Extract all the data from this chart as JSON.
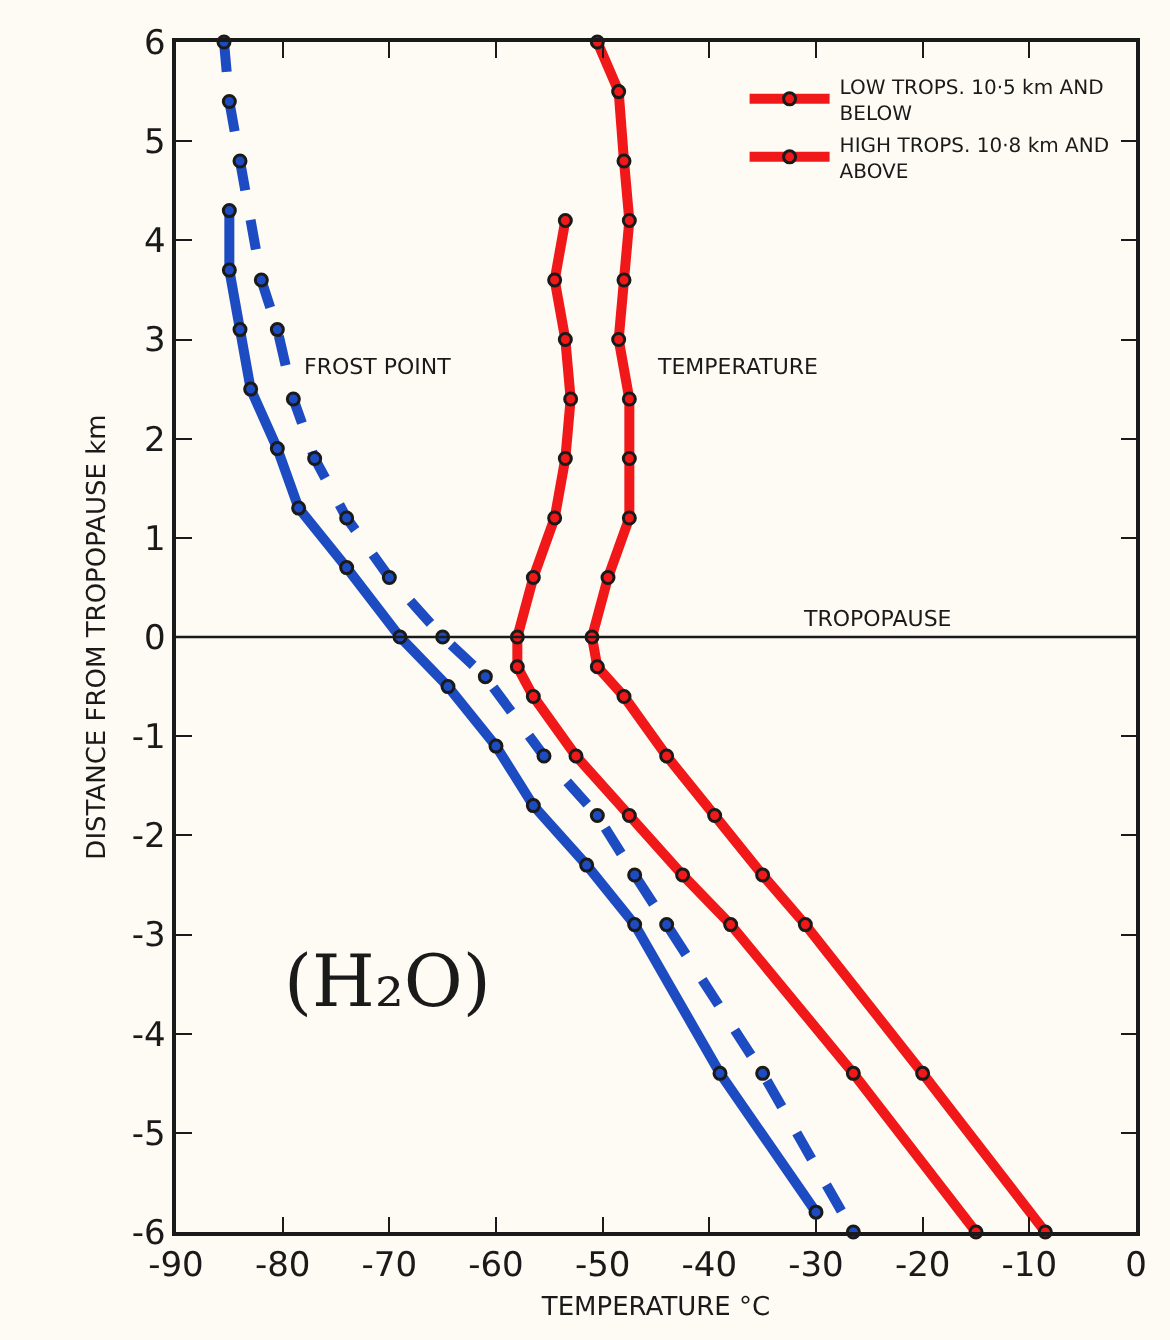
{
  "chart_data": {
    "type": "line",
    "xlabel": "TEMPERATURE °C",
    "ylabel": "DISTANCE FROM TROPOPAUSE km",
    "xlim": [
      -90,
      0
    ],
    "xticks": [
      -90,
      -80,
      -70,
      -60,
      -50,
      -40,
      -30,
      -20,
      -10,
      0
    ],
    "ylim": [
      -6,
      6
    ],
    "yticks": [
      -6,
      -5,
      -4,
      -3,
      -2,
      -1,
      0,
      1,
      2,
      3,
      4,
      5,
      6
    ],
    "marker": "circle",
    "legend": "top right",
    "ref_lines": [
      {
        "axis": "y",
        "value": 0,
        "label": "TROPOPAUSE"
      }
    ],
    "annotations": [
      "FROST POINT",
      "TEMPERATURE",
      "(H₂O)"
    ],
    "series": [
      {
        "name": "LOW TROPS. 10·5 km AND BELOW",
        "color": "#f01818",
        "line_style": "solid",
        "x": [
          -50.5,
          -48.5,
          -48.0,
          -47.5,
          -48.0,
          -48.5,
          -47.5,
          -47.5,
          -47.5,
          -49.5,
          -51.0,
          -50.5,
          -48.0,
          -44.0,
          -39.5,
          -35.0,
          -31.0,
          -20.0,
          -8.5
        ],
        "values": [
          6.0,
          5.5,
          4.8,
          4.2,
          3.6,
          3.0,
          2.4,
          1.8,
          1.2,
          0.6,
          0.0,
          -0.3,
          -0.6,
          -1.2,
          -1.8,
          -2.4,
          -2.9,
          -4.4,
          -6.0
        ]
      },
      {
        "color": "#1d4cc2",
        "line_style": "dashed",
        "x": [
          -85.5,
          -85.0,
          -84.0,
          -82.0,
          -80.5,
          -79.0,
          -77.0,
          -74.0,
          -70.0,
          -65.0,
          -61.0,
          -55.5,
          -50.5,
          -47.0,
          -44.0,
          -35.0,
          -26.5
        ],
        "values": [
          6.0,
          5.4,
          4.8,
          3.6,
          3.1,
          2.4,
          1.8,
          1.2,
          0.6,
          0.0,
          -0.4,
          -1.2,
          -1.8,
          -2.4,
          -2.9,
          -4.4,
          -6.0
        ]
      },
      {
        "name": "HIGH TROPS. 10·8 km AND ABOVE",
        "color": "#f01818",
        "line_style": "solid",
        "x": [
          -53.5,
          -54.5,
          -53.5,
          -53.0,
          -53.5,
          -54.5,
          -56.5,
          -58.0,
          -58.0,
          -56.5,
          -52.5,
          -47.5,
          -42.5,
          -38.0,
          -26.5,
          -15.0
        ],
        "values": [
          4.2,
          3.6,
          3.0,
          2.4,
          1.8,
          1.2,
          0.6,
          0.0,
          -0.3,
          -0.6,
          -1.2,
          -1.8,
          -2.4,
          -2.9,
          -4.4,
          -6.0
        ]
      },
      {
        "color": "#1d4cc2",
        "line_style": "solid",
        "x": [
          -85.0,
          -85.0,
          -84.0,
          -83.0,
          -80.5,
          -78.5,
          -74.0,
          -69.0,
          -64.5,
          -60.0,
          -56.5,
          -51.5,
          -47.0,
          -39.0,
          -30.0
        ],
        "values": [
          4.3,
          3.7,
          3.1,
          2.5,
          1.9,
          1.3,
          0.7,
          0.0,
          -0.5,
          -1.1,
          -1.7,
          -2.3,
          -2.9,
          -4.4,
          -5.8
        ]
      }
    ]
  }
}
